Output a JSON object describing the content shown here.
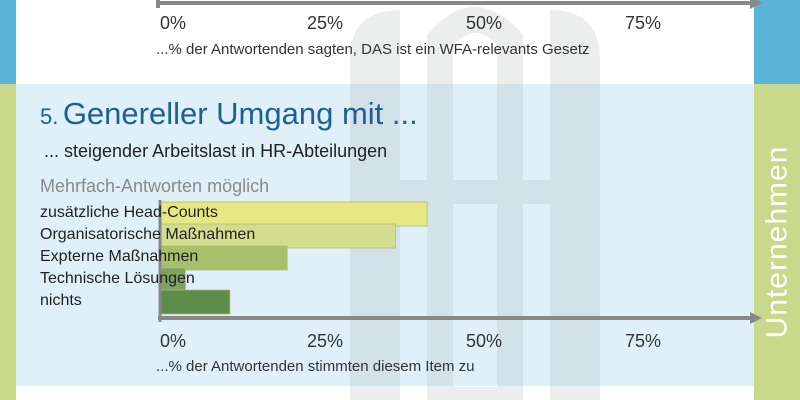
{
  "previous_section": {
    "tick_labels": [
      "0%",
      "25%",
      "50%",
      "75%"
    ],
    "caption": "...% der Antwortenden sagten, DAS ist ein WFA-relevants Gesetz"
  },
  "section": {
    "number": "5.",
    "title": "Genereller Umgang mit ...",
    "subtitle": "... steigender Arbeitslast in HR-Abteilungen",
    "note": "Mehrfach-Antworten möglich"
  },
  "side_label": "Unternehmen",
  "colors": {
    "panel": "#dff0f8",
    "stripe_top": "#5ab4d8",
    "stripe_bottom": "#c9d88a",
    "axis": "#888888",
    "title": "#1e5f95"
  },
  "chart_data": {
    "type": "bar",
    "orientation": "horizontal",
    "categories": [
      "zusätzliche Head-Counts",
      "Organisatorische Maßnahmen",
      "Expterne Maßnahmen",
      "Technische Lösungen",
      "nichts"
    ],
    "values": [
      42,
      37,
      20,
      4,
      11
    ],
    "bar_colors": [
      "#e6e883",
      "#d2dd8e",
      "#a7c06c",
      "#7da360",
      "#5e8c4a"
    ],
    "xlim": [
      0,
      90
    ],
    "ticks": [
      0,
      25,
      50,
      75
    ],
    "tick_labels": [
      "0%",
      "25%",
      "50%",
      "75%"
    ],
    "xlabel": "...% der Antwortenden stimmten diesem Item zu"
  }
}
